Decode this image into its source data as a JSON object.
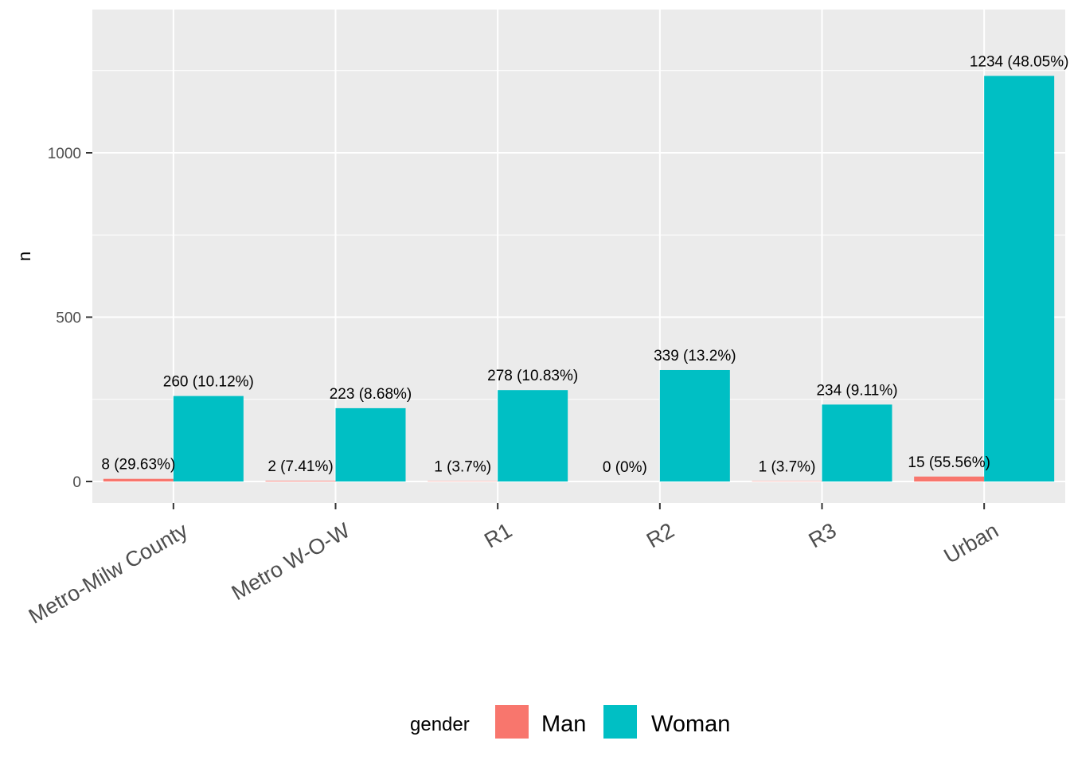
{
  "chart_data": {
    "type": "bar",
    "categories": [
      "Metro-Milw County",
      "Metro W-O-W",
      "R1",
      "R2",
      "R3",
      "Urban"
    ],
    "series": [
      {
        "name": "Man",
        "color": "#F8766D",
        "values": [
          8,
          2,
          1,
          0,
          1,
          15
        ],
        "labels": [
          "8 (29.63%)",
          "2 (7.41%)",
          "1 (3.7%)",
          "0 (0%)",
          "1 (3.7%)",
          "15 (55.56%)"
        ]
      },
      {
        "name": "Woman",
        "color": "#00BFC4",
        "values": [
          260,
          223,
          278,
          339,
          234,
          1234
        ],
        "labels": [
          "260 (10.12%)",
          "223 (8.68%)",
          "278 (10.83%)",
          "339 (13.2%)",
          "234 (9.11%)",
          "1234 (48.05%)"
        ]
      }
    ],
    "xlabel": "",
    "ylabel": "n",
    "ylim": [
      -65,
      1430
    ],
    "yticks": [
      0,
      500,
      1000
    ],
    "legend": {
      "title": "gender",
      "position": "bottom"
    },
    "grid": true
  }
}
